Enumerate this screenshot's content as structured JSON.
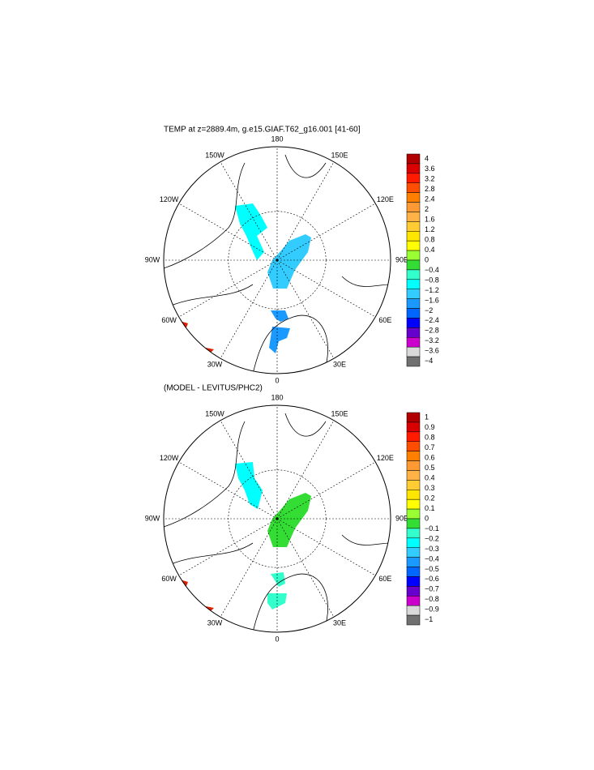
{
  "panels": [
    {
      "title": "TEMP at z=2889.4m, g.e15.GIAF.T62_g16.001 [41-60]",
      "longitude_labels": [
        "180",
        "150E",
        "120E",
        "90E",
        "60E",
        "30E",
        "0",
        "30W",
        "60W",
        "90W",
        "120W",
        "150W"
      ],
      "colorbar_labels": [
        "4",
        "3.6",
        "3.2",
        "2.8",
        "2.4",
        "2",
        "1.6",
        "1.2",
        "0.8",
        "0.4",
        "0",
        "−0.4",
        "−0.8",
        "−1.2",
        "−1.6",
        "−2",
        "−2.4",
        "−2.8",
        "−3.2",
        "−3.6",
        "−4"
      ]
    },
    {
      "title": "(MODEL - LEVITUS/PHC2)",
      "longitude_labels": [
        "180",
        "150E",
        "120E",
        "90E",
        "60E",
        "30E",
        "0",
        "30W",
        "60W",
        "90W",
        "120W",
        "150W"
      ],
      "colorbar_labels": [
        "1",
        "0.9",
        "0.8",
        "0.7",
        "0.6",
        "0.5",
        "0.4",
        "0.3",
        "0.2",
        "0.1",
        "0",
        "−0.1",
        "−0.2",
        "−0.3",
        "−0.4",
        "−0.5",
        "−0.6",
        "−0.7",
        "−0.8",
        "−0.9",
        "−1"
      ]
    }
  ],
  "colorbar_colors": [
    "#b00000",
    "#d80000",
    "#ff1a00",
    "#ff4d00",
    "#ff7f00",
    "#ff9933",
    "#ffb347",
    "#ffcc33",
    "#ffe600",
    "#ffff00",
    "#99ff33",
    "#33dd33",
    "#33ffcc",
    "#00ffff",
    "#33ccff",
    "#1a99ff",
    "#0066ff",
    "#0000ff",
    "#6600cc",
    "#cc00cc",
    "#d9d9d9",
    "#707070"
  ]
}
